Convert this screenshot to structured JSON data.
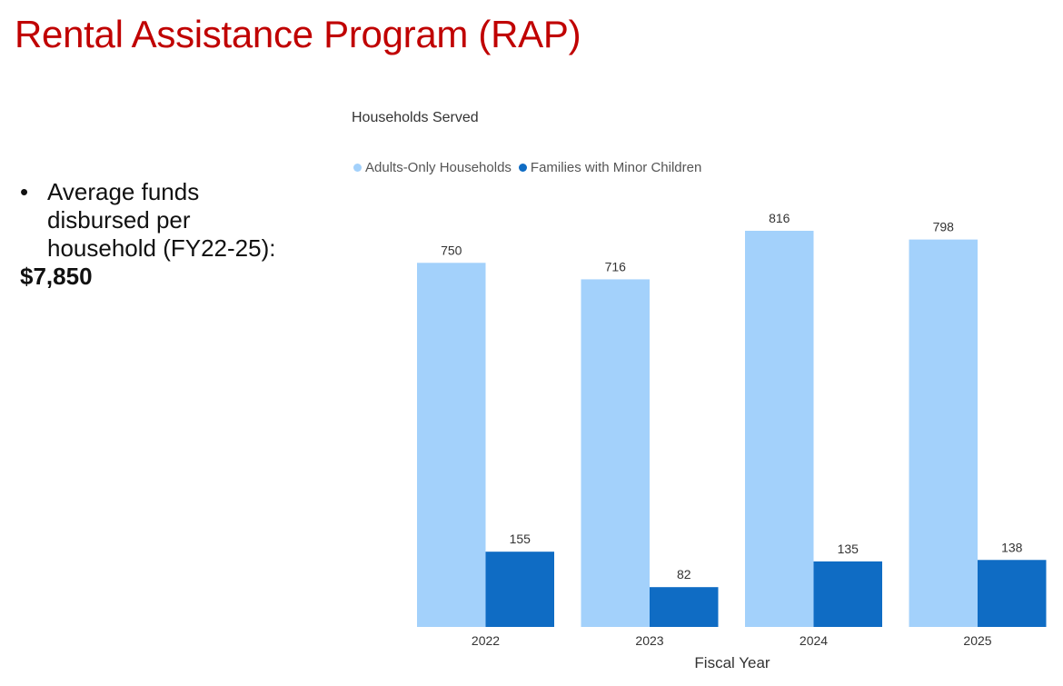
{
  "page": {
    "title": "Rental Assistance Program (RAP)"
  },
  "bullet": {
    "marker": "•",
    "text": "Average funds disbursed per household (FY22-25):",
    "amount": "$7,850"
  },
  "chart_data": {
    "type": "bar",
    "title": "Households Served",
    "xlabel": "Fiscal Year",
    "ylabel": "",
    "categories": [
      "2022",
      "2023",
      "2024",
      "2025"
    ],
    "series": [
      {
        "name": "Adults-Only Households",
        "color": "#a3d1fb",
        "values": [
          750,
          716,
          816,
          798
        ]
      },
      {
        "name": "Families with Minor Children",
        "color": "#0f6cc4",
        "values": [
          155,
          82,
          135,
          138
        ]
      }
    ],
    "ylim": [
      0,
      816
    ],
    "grid": false,
    "legend": "top-left",
    "data_labels": true
  }
}
